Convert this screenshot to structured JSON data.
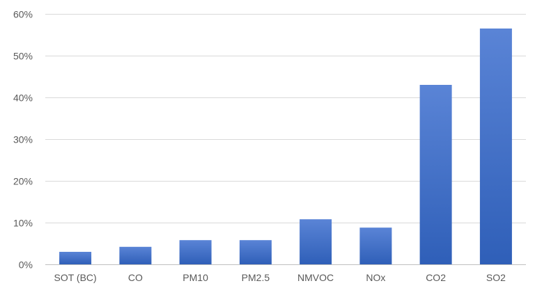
{
  "chart_data": {
    "type": "bar",
    "title": "",
    "xlabel": "",
    "ylabel": "",
    "categories": [
      "SOT (BC)",
      "CO",
      "PM10",
      "PM2.5",
      "NMVOC",
      "NOx",
      "CO2",
      "SO2"
    ],
    "values": [
      0.03,
      0.042,
      0.058,
      0.058,
      0.108,
      0.088,
      0.43,
      0.565
    ],
    "ylim": [
      0,
      0.6
    ],
    "yticks": [
      0,
      0.1,
      0.2,
      0.3,
      0.4,
      0.5,
      0.6
    ],
    "ytick_labels": [
      "0%",
      "10%",
      "20%",
      "30%",
      "40%",
      "50%",
      "60%"
    ],
    "grid": true,
    "legend": "none",
    "bar_color_top": "#5a84d6",
    "bar_color_bottom": "#2f5fb8",
    "grid_color": "#d9d9d9",
    "text_color": "#595959"
  }
}
